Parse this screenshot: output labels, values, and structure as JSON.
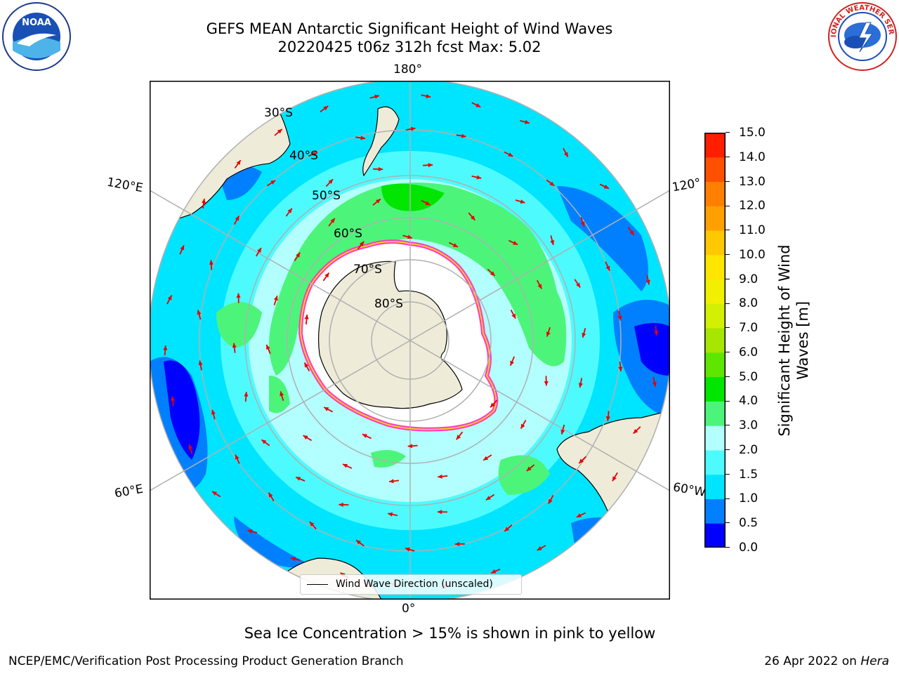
{
  "title": {
    "line1": "GEFS MEAN Antarctic Significant Height of Wind Waves",
    "line2": "20220425 t06z 312h fcst   Max: 5.02"
  },
  "logos": {
    "left": "noaa-logo",
    "right": "nws-logo"
  },
  "map": {
    "projection": "south-polar-stereographic",
    "longitude_labels": {
      "top": "180°",
      "bottom": "0°",
      "left_upper": "120°E",
      "left_lower": "60°E",
      "right_upper": "120°",
      "right_lower": "60°W"
    },
    "latitude_labels": [
      "30°S",
      "40°S",
      "50°S",
      "60°S",
      "70°S",
      "80°S"
    ],
    "legend": "Wind Wave Direction (unscaled)",
    "colors": {
      "land": "#efebd9",
      "ice": "#ffffff",
      "arrow": "#e60000",
      "grid": "#b0b0b0"
    }
  },
  "colorbar": {
    "label_line1": "Significant Height of Wind",
    "label_line2": "Waves [m]",
    "ticks": [
      "0.0",
      "0.5",
      "1.0",
      "1.5",
      "2.0",
      "3.0",
      "4.0",
      "5.0",
      "6.0",
      "7.0",
      "8.0",
      "9.0",
      "10.0",
      "11.0",
      "12.0",
      "13.0",
      "14.0",
      "15.0"
    ],
    "colors": [
      "#0000ff",
      "#0080ff",
      "#00e5ff",
      "#4dfbff",
      "#b3ffff",
      "#4cf57a",
      "#00e600",
      "#5ee600",
      "#a6e600",
      "#d2f000",
      "#f0f000",
      "#ffe600",
      "#ffc800",
      "#ffa000",
      "#ff8000",
      "#ff5000",
      "#ff1e00"
    ]
  },
  "note": "Sea Ice Concentration > 15% is shown in pink to yellow",
  "footer": {
    "left": "NCEP/EMC/Verification Post Processing Product Generation Branch",
    "right_prefix": "26 Apr 2022 on ",
    "right_host": "Hera"
  }
}
